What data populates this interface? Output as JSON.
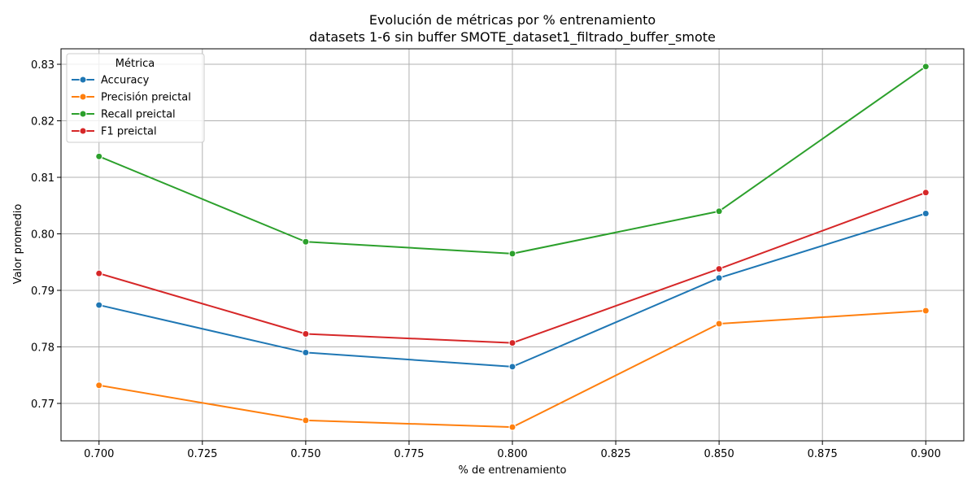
{
  "chart_data": {
    "type": "line",
    "title": "Evolución de métricas por % entrenamiento",
    "subtitle": "datasets 1-6 sin buffer SMOTE_dataset1_filtrado_buffer_smote",
    "xlabel": "% de entrenamiento",
    "ylabel": "Valor promedio",
    "x": [
      0.7,
      0.75,
      0.8,
      0.85,
      0.9
    ],
    "xlim": [
      0.6908,
      0.9092
    ],
    "ylim": [
      0.76338,
      0.83274
    ],
    "xticks": [
      0.7,
      0.725,
      0.75,
      0.775,
      0.8,
      0.825,
      0.85,
      0.875,
      0.9
    ],
    "xtick_labels": [
      "0.700",
      "0.725",
      "0.750",
      "0.775",
      "0.800",
      "0.825",
      "0.850",
      "0.875",
      "0.900"
    ],
    "yticks": [
      0.77,
      0.78,
      0.79,
      0.8,
      0.81,
      0.82,
      0.83
    ],
    "ytick_labels": [
      "0.77",
      "0.78",
      "0.79",
      "0.80",
      "0.81",
      "0.82",
      "0.83"
    ],
    "grid": true,
    "legend": {
      "title": "Métrica",
      "position": "top-left"
    },
    "series": [
      {
        "name": "Accuracy",
        "color": "#1f77b4",
        "values": [
          0.7874,
          0.779,
          0.7765,
          0.7922,
          0.8036
        ]
      },
      {
        "name": "Precisión preictal",
        "color": "#ff7f0e",
        "values": [
          0.7732,
          0.767,
          0.7658,
          0.7841,
          0.7864
        ]
      },
      {
        "name": "Recall preictal",
        "color": "#2ca02c",
        "values": [
          0.8137,
          0.7986,
          0.7965,
          0.804,
          0.8296
        ]
      },
      {
        "name": "F1 preictal",
        "color": "#d62728",
        "values": [
          0.793,
          0.7823,
          0.7807,
          0.7938,
          0.8073
        ]
      }
    ]
  }
}
